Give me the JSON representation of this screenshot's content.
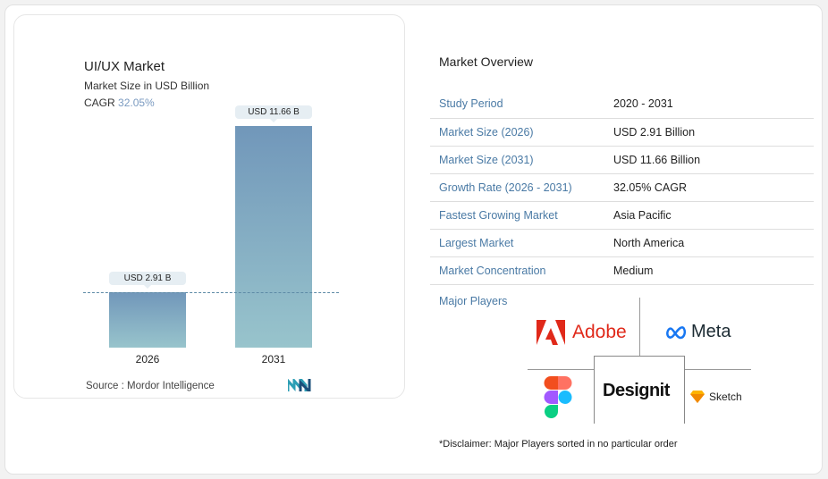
{
  "chart_data": {
    "type": "bar",
    "title": "UI/UX Market",
    "subtitle": "Market Size in USD Billion",
    "cagr_label": "CAGR",
    "cagr_value": "32.05%",
    "categories": [
      "2026",
      "2031"
    ],
    "values": [
      2.91,
      11.66
    ],
    "data_labels": [
      "USD 2.91 B",
      "USD 11.66 B"
    ],
    "colors": {
      "bar_top": "#7197ba",
      "bar_bottom": "#98c4cc"
    },
    "source": "Source :  Mordor Intelligence"
  },
  "overview": {
    "title": "Market Overview",
    "rows": [
      {
        "k": "Study Period",
        "v": "2020 - 2031"
      },
      {
        "k": "Market Size (2026)",
        "v": "USD 2.91 Billion"
      },
      {
        "k": "Market Size (2031)",
        "v": "USD 11.66 Billion"
      },
      {
        "k": "Growth Rate (2026 - 2031)",
        "v": "32.05% CAGR"
      },
      {
        "k": "Fastest Growing Market",
        "v": "Asia Pacific"
      },
      {
        "k": "Largest Market",
        "v": "North America"
      },
      {
        "k": "Market Concentration",
        "v": "Medium"
      }
    ],
    "major_players_label": "Major Players",
    "players": [
      "Adobe",
      "Meta",
      "Figma",
      "Designit",
      "Sketch"
    ],
    "disclaimer": "*Disclaimer: Major Players sorted in no particular order"
  }
}
